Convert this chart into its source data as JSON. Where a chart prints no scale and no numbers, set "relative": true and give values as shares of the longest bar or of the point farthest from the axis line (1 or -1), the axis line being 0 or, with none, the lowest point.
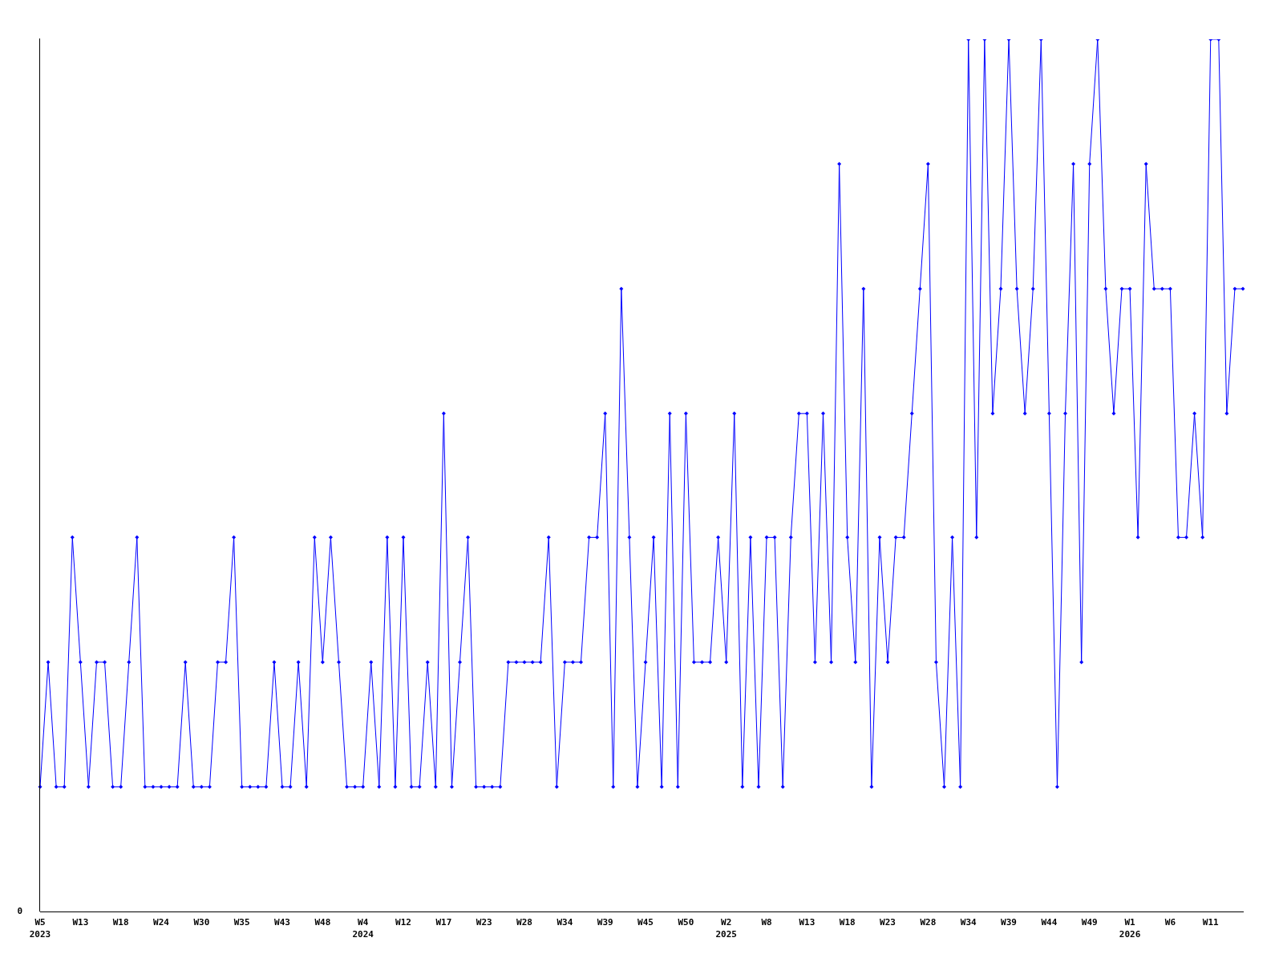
{
  "chart_data": {
    "type": "line",
    "relative": true,
    "marker": "diamond",
    "tick_labels": "x",
    "annotations": [
      "0"
    ],
    "categories": [
      "W5\n2023",
      null,
      null,
      null,
      null,
      "W13",
      null,
      null,
      null,
      null,
      "W18",
      null,
      null,
      null,
      null,
      "W24",
      null,
      null,
      null,
      null,
      "W30",
      null,
      null,
      null,
      null,
      "W35",
      null,
      null,
      null,
      null,
      "W43",
      null,
      null,
      null,
      null,
      "W48",
      null,
      null,
      null,
      null,
      "W4\n2024",
      null,
      null,
      null,
      null,
      "W12",
      null,
      null,
      null,
      null,
      "W17",
      null,
      null,
      null,
      null,
      "W23",
      null,
      null,
      null,
      null,
      "W28",
      null,
      null,
      null,
      null,
      "W34",
      null,
      null,
      null,
      null,
      "W39",
      null,
      null,
      null,
      null,
      "W45",
      null,
      null,
      null,
      null,
      "W50",
      null,
      null,
      null,
      null,
      "W2\n2025",
      null,
      null,
      null,
      null,
      "W8",
      null,
      null,
      null,
      null,
      "W13",
      null,
      null,
      null,
      null,
      "W18",
      null,
      null,
      null,
      null,
      "W23",
      null,
      null,
      null,
      null,
      "W28",
      null,
      null,
      null,
      null,
      "W34",
      null,
      null,
      null,
      null,
      "W39",
      null,
      null,
      null,
      null,
      "W44",
      null,
      null,
      null,
      null,
      "W49",
      null,
      null,
      null,
      null,
      "W1\n2026",
      null,
      null,
      null,
      null,
      "W6",
      null,
      null,
      null,
      null,
      "W11",
      null,
      null,
      null,
      null
    ],
    "series": [
      {
        "color": "#0000ff",
        "values": [
          0.143,
          0.286,
          0.143,
          0.143,
          0.429,
          0.286,
          0.143,
          0.286,
          0.286,
          0.143,
          0.143,
          0.286,
          0.429,
          0.143,
          0.143,
          0.143,
          0.143,
          0.143,
          0.286,
          0.143,
          0.143,
          0.143,
          0.286,
          0.286,
          0.429,
          0.143,
          0.143,
          0.143,
          0.143,
          0.286,
          0.143,
          0.143,
          0.286,
          0.143,
          0.429,
          0.286,
          0.429,
          0.286,
          0.143,
          0.143,
          0.143,
          0.286,
          0.143,
          0.429,
          0.143,
          0.429,
          0.143,
          0.143,
          0.286,
          0.143,
          0.571,
          0.143,
          0.286,
          0.429,
          0.143,
          0.143,
          0.143,
          0.143,
          0.286,
          0.286,
          0.286,
          0.286,
          0.286,
          0.429,
          0.143,
          0.286,
          0.286,
          0.286,
          0.429,
          0.429,
          0.571,
          0.143,
          0.714,
          0.429,
          0.143,
          0.286,
          0.429,
          0.143,
          0.571,
          0.143,
          0.571,
          0.286,
          0.286,
          0.286,
          0.429,
          0.286,
          0.571,
          0.143,
          0.429,
          0.143,
          0.429,
          0.429,
          0.143,
          0.429,
          0.571,
          0.571,
          0.286,
          0.571,
          0.286,
          0.857,
          0.429,
          0.286,
          0.714,
          0.143,
          0.429,
          0.286,
          0.429,
          0.429,
          0.571,
          0.714,
          0.857,
          0.286,
          0.143,
          0.429,
          0.143,
          1,
          0.429,
          1,
          0.571,
          0.714,
          1,
          0.714,
          0.571,
          0.714,
          1,
          0.571,
          0.143,
          0.571,
          0.857,
          0.286,
          0.857,
          1,
          0.714,
          0.571,
          0.714,
          0.714,
          0.429,
          0.857,
          0.714,
          0.714,
          0.714,
          0.429,
          0.429,
          0.571,
          0.429,
          1,
          1,
          0.571,
          0.714,
          0.714
        ]
      }
    ]
  }
}
